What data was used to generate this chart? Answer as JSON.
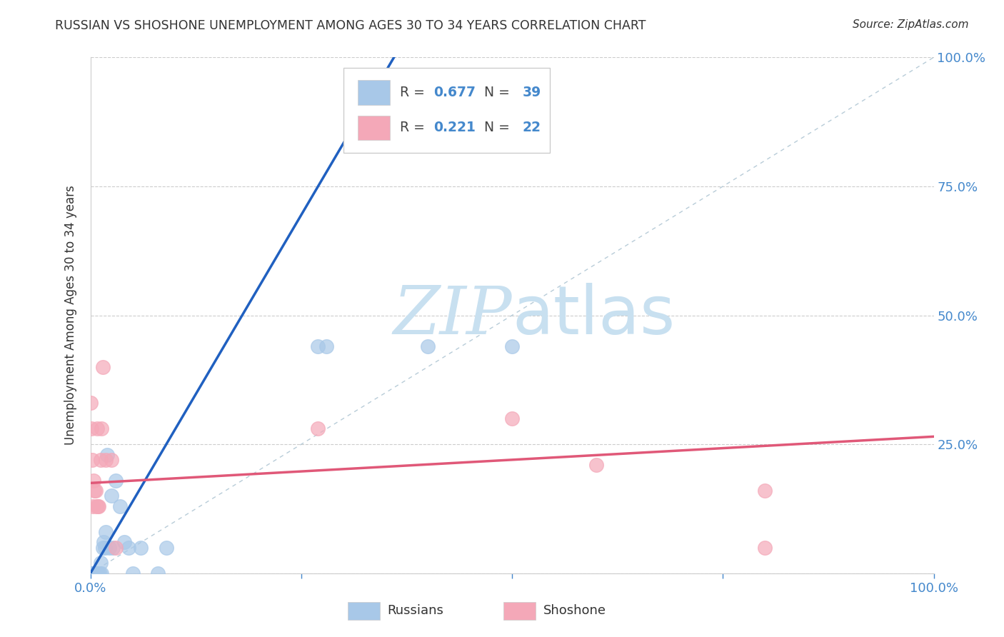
{
  "title": "RUSSIAN VS SHOSHONE UNEMPLOYMENT AMONG AGES 30 TO 34 YEARS CORRELATION CHART",
  "source": "Source: ZipAtlas.com",
  "ylabel": "Unemployment Among Ages 30 to 34 years",
  "xlim": [
    0,
    1
  ],
  "ylim": [
    0,
    1
  ],
  "ytick_values": [
    0.0,
    0.25,
    0.5,
    0.75,
    1.0
  ],
  "ytick_labels": [
    "",
    "25.0%",
    "50.0%",
    "75.0%",
    "100.0%"
  ],
  "xtick_values": [
    0.0,
    0.25,
    0.5,
    0.75,
    1.0
  ],
  "xtick_labels": [
    "0.0%",
    "",
    "",
    "",
    "100.0%"
  ],
  "russian_R": "0.677",
  "russian_N": "39",
  "shoshone_R": "0.221",
  "shoshone_N": "22",
  "russian_color": "#a8c8e8",
  "shoshone_color": "#f4a8b8",
  "russian_line_color": "#2060c0",
  "shoshone_line_color": "#e05878",
  "diagonal_color": "#b8ccd8",
  "background_color": "#ffffff",
  "grid_color": "#cccccc",
  "label_color": "#4488cc",
  "title_color": "#333333",
  "watermark_color": "#c8e0f0",
  "russian_scatter": [
    [
      0.001,
      0.0
    ],
    [
      0.001,
      0.0
    ],
    [
      0.002,
      0.0
    ],
    [
      0.002,
      0.0
    ],
    [
      0.003,
      0.0
    ],
    [
      0.003,
      0.0
    ],
    [
      0.004,
      0.0
    ],
    [
      0.004,
      0.0
    ],
    [
      0.005,
      0.0
    ],
    [
      0.005,
      0.0
    ],
    [
      0.006,
      0.0
    ],
    [
      0.007,
      0.0
    ],
    [
      0.008,
      0.0
    ],
    [
      0.009,
      0.0
    ],
    [
      0.01,
      0.0
    ],
    [
      0.011,
      0.0
    ],
    [
      0.012,
      0.02
    ],
    [
      0.013,
      0.0
    ],
    [
      0.015,
      0.05
    ],
    [
      0.016,
      0.06
    ],
    [
      0.017,
      0.05
    ],
    [
      0.018,
      0.08
    ],
    [
      0.02,
      0.23
    ],
    [
      0.022,
      0.05
    ],
    [
      0.025,
      0.15
    ],
    [
      0.027,
      0.05
    ],
    [
      0.03,
      0.18
    ],
    [
      0.035,
      0.13
    ],
    [
      0.04,
      0.06
    ],
    [
      0.045,
      0.05
    ],
    [
      0.05,
      0.0
    ],
    [
      0.06,
      0.05
    ],
    [
      0.08,
      0.0
    ],
    [
      0.09,
      0.05
    ],
    [
      0.27,
      0.44
    ],
    [
      0.28,
      0.44
    ],
    [
      0.32,
      0.88
    ],
    [
      0.4,
      0.44
    ],
    [
      0.5,
      0.44
    ]
  ],
  "shoshone_scatter": [
    [
      0.0,
      0.33
    ],
    [
      0.001,
      0.28
    ],
    [
      0.002,
      0.22
    ],
    [
      0.003,
      0.13
    ],
    [
      0.004,
      0.18
    ],
    [
      0.005,
      0.16
    ],
    [
      0.006,
      0.16
    ],
    [
      0.007,
      0.13
    ],
    [
      0.008,
      0.28
    ],
    [
      0.009,
      0.13
    ],
    [
      0.01,
      0.13
    ],
    [
      0.012,
      0.22
    ],
    [
      0.013,
      0.28
    ],
    [
      0.015,
      0.4
    ],
    [
      0.018,
      0.22
    ],
    [
      0.025,
      0.22
    ],
    [
      0.03,
      0.05
    ],
    [
      0.27,
      0.28
    ],
    [
      0.5,
      0.3
    ],
    [
      0.6,
      0.21
    ],
    [
      0.8,
      0.16
    ],
    [
      0.8,
      0.05
    ]
  ],
  "russian_trendline_x": [
    0.0,
    0.36
  ],
  "russian_trendline_y": [
    0.0,
    1.0
  ],
  "shoshone_trendline_x": [
    0.0,
    1.0
  ],
  "shoshone_trendline_y": [
    0.175,
    0.265
  ]
}
